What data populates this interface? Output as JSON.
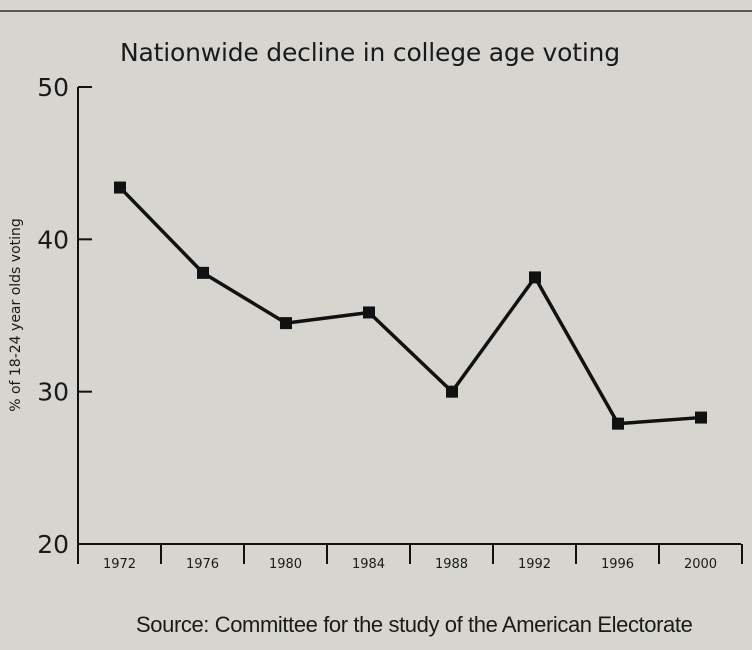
{
  "chart_data": {
    "type": "line",
    "title": "Nationwide decline in college age voting",
    "ylabel": "% of 18-24 year olds voting",
    "xlabel": "",
    "source": "Source: Committee for the study of the American Electorate",
    "categories": [
      "1972",
      "1976",
      "1980",
      "1984",
      "1988",
      "1992",
      "1996",
      "2000"
    ],
    "yticks": [
      "20",
      "30",
      "40",
      "50"
    ],
    "ylim": [
      20,
      50
    ],
    "grid": false,
    "legend": "none",
    "series": [
      {
        "values": [
          43.4,
          37.8,
          34.5,
          35.2,
          30.0,
          37.5,
          27.9,
          28.3
        ]
      }
    ],
    "colors": {
      "line": "#111111",
      "marker": "#111111",
      "axis": "#111111",
      "background": "#d6d5d0"
    }
  }
}
